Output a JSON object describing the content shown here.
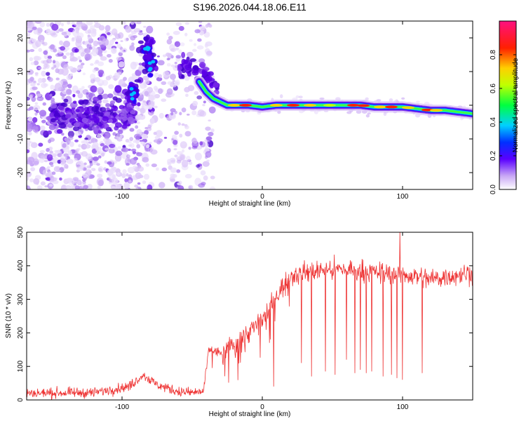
{
  "title": "S196.2026.044.18.06.E11",
  "chart_data": [
    {
      "type": "heatmap",
      "name": "spectrogram",
      "xlabel": "Height of straight line (km)",
      "ylabel": "Frequency (Hz)",
      "xlim": [
        -168,
        150
      ],
      "ylim": [
        -25,
        25
      ],
      "xticks": [
        -100,
        0,
        100
      ],
      "xtick_labels": [
        "-100",
        "0",
        "100"
      ],
      "yticks": [
        -20,
        -10,
        0,
        10,
        20
      ],
      "ytick_labels": [
        "-20",
        "-10",
        "0",
        "10",
        "20"
      ],
      "colorbar": {
        "label": "Normalized spectral amplitude",
        "range": [
          0,
          1
        ],
        "ticks": [
          0.0,
          0.2,
          0.4,
          0.6,
          0.8
        ],
        "tick_labels": [
          "0.0",
          "0.2",
          "0.4",
          "0.6",
          "0.8"
        ]
      },
      "ridge": {
        "x": [
          -45,
          -40,
          -35,
          -30,
          -25,
          -20,
          -10,
          0,
          10,
          20,
          30,
          40,
          50,
          60,
          70,
          80,
          90,
          100,
          110,
          120,
          130,
          140,
          150
        ],
        "y": [
          7,
          4,
          2,
          1,
          0,
          0,
          0,
          -0.5,
          0,
          0,
          0,
          0,
          0,
          0,
          0,
          -0.5,
          -0.5,
          -0.5,
          -1,
          -1.5,
          -1.5,
          -2,
          -2.5
        ]
      },
      "clusters": [
        {
          "x": -82,
          "y": 17,
          "label": "high"
        },
        {
          "x": -80,
          "y": 12,
          "label": "high"
        },
        {
          "x": -92,
          "y": 3,
          "label": "high"
        }
      ]
    },
    {
      "type": "line",
      "name": "snr",
      "xlabel": "Height of straight line (km)",
      "ylabel": "SNR (10 * v/v)",
      "xlim": [
        -168,
        150
      ],
      "ylim": [
        0,
        500
      ],
      "xticks": [
        -100,
        0,
        100
      ],
      "xtick_labels": [
        "-100",
        "0",
        "100"
      ],
      "yticks": [
        0,
        100,
        200,
        300,
        400,
        500
      ],
      "ytick_labels": [
        "0",
        "100",
        "200",
        "300",
        "400",
        "500"
      ],
      "color": "#ee3333",
      "envelope": {
        "x": [
          -168,
          -120,
          -95,
          -85,
          -75,
          -60,
          -50,
          -42,
          -38,
          -30,
          -20,
          -10,
          0,
          10,
          20,
          30,
          40,
          60,
          80,
          100,
          120,
          150
        ],
        "y": [
          20,
          22,
          40,
          75,
          45,
          25,
          22,
          25,
          150,
          140,
          170,
          200,
          240,
          310,
          370,
          380,
          385,
          390,
          380,
          375,
          360,
          380
        ]
      },
      "noise": 25,
      "dips": [
        {
          "x": 8,
          "y": 40
        },
        {
          "x": 28,
          "y": 110
        },
        {
          "x": 35,
          "y": 70
        },
        {
          "x": 45,
          "y": 85
        },
        {
          "x": 52,
          "y": 75
        },
        {
          "x": 60,
          "y": 120
        },
        {
          "x": 66,
          "y": 80
        },
        {
          "x": 70,
          "y": 90
        },
        {
          "x": 74,
          "y": 80
        },
        {
          "x": 78,
          "y": 85
        },
        {
          "x": 86,
          "y": 70
        },
        {
          "x": 92,
          "y": 75
        },
        {
          "x": 96,
          "y": 65
        },
        {
          "x": 100,
          "y": 60
        },
        {
          "x": 114,
          "y": 80
        }
      ],
      "peak": {
        "x": 98,
        "y": 505
      }
    }
  ]
}
